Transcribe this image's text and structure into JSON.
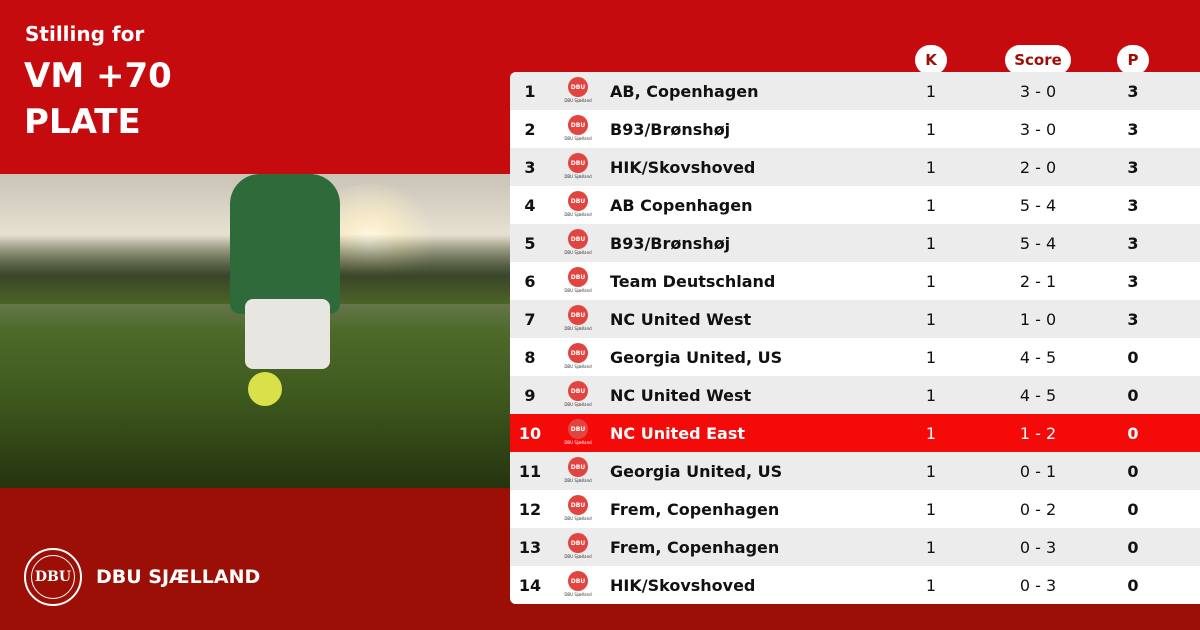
{
  "header": {
    "subtitle": "Stilling for",
    "title_line1": "VM +70",
    "title_line2": "PLATE"
  },
  "brand": {
    "name": "DBU SJÆLLAND",
    "seal_text": "DBU"
  },
  "columns": {
    "k": "K",
    "score": "Score",
    "p": "P"
  },
  "logo_caption": "DBU Sjælland",
  "colors": {
    "primary": "#c60b0e",
    "dark": "#9c0f06",
    "highlight": "#f50a0a"
  },
  "rows": [
    {
      "rank": "1",
      "team": "AB, Copenhagen",
      "k": "1",
      "score": "3 - 0",
      "p": "3"
    },
    {
      "rank": "2",
      "team": "B93/Brønshøj",
      "k": "1",
      "score": "3 - 0",
      "p": "3"
    },
    {
      "rank": "3",
      "team": "HIK/Skovshoved",
      "k": "1",
      "score": "2 - 0",
      "p": "3"
    },
    {
      "rank": "4",
      "team": "AB Copenhagen",
      "k": "1",
      "score": "5 - 4",
      "p": "3"
    },
    {
      "rank": "5",
      "team": "B93/Brønshøj",
      "k": "1",
      "score": "5 - 4",
      "p": "3"
    },
    {
      "rank": "6",
      "team": "Team Deutschland",
      "k": "1",
      "score": "2 - 1",
      "p": "3"
    },
    {
      "rank": "7",
      "team": "NC United West",
      "k": "1",
      "score": "1 - 0",
      "p": "3"
    },
    {
      "rank": "8",
      "team": "Georgia United, US",
      "k": "1",
      "score": "4 - 5",
      "p": "0"
    },
    {
      "rank": "9",
      "team": "NC United West",
      "k": "1",
      "score": "4 - 5",
      "p": "0"
    },
    {
      "rank": "10",
      "team": "NC United East",
      "k": "1",
      "score": "1 - 2",
      "p": "0",
      "highlighted": true
    },
    {
      "rank": "11",
      "team": "Georgia United, US",
      "k": "1",
      "score": "0 - 1",
      "p": "0"
    },
    {
      "rank": "12",
      "team": "Frem, Copenhagen",
      "k": "1",
      "score": "0 - 2",
      "p": "0"
    },
    {
      "rank": "13",
      "team": "Frem, Copenhagen",
      "k": "1",
      "score": "0 - 3",
      "p": "0"
    },
    {
      "rank": "14",
      "team": "HIK/Skovshoved",
      "k": "1",
      "score": "0 - 3",
      "p": "0"
    }
  ]
}
